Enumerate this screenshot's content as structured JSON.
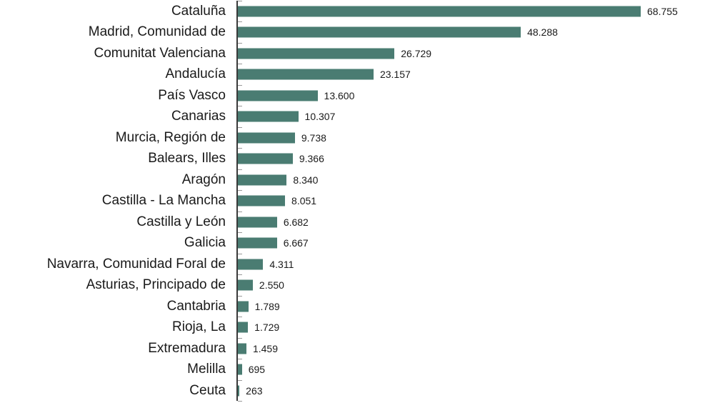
{
  "chart_data": {
    "type": "bar",
    "orientation": "horizontal",
    "title": "",
    "xlabel": "",
    "ylabel": "",
    "categories": [
      "Cataluña",
      "Madrid, Comunidad de",
      "Comunitat Valenciana",
      "Andalucía",
      "País Vasco",
      "Canarias",
      "Murcia, Región de",
      "Balears, Illes",
      "Aragón",
      "Castilla - La Mancha",
      "Castilla y León",
      "Galicia",
      "Navarra, Comunidad Foral de",
      "Asturias, Principado de",
      "Cantabria",
      "Rioja, La",
      "Extremadura",
      "Melilla",
      "Ceuta"
    ],
    "values": [
      68755,
      48288,
      26729,
      23157,
      13600,
      10307,
      9738,
      9366,
      8340,
      8051,
      6682,
      6667,
      4311,
      2550,
      1789,
      1729,
      1459,
      695,
      263
    ],
    "value_labels": [
      "68.755",
      "48.288",
      "26.729",
      "23.157",
      "13.600",
      "10.307",
      "9.738",
      "9.366",
      "8.340",
      "8.051",
      "6.682",
      "6.667",
      "4.311",
      "2.550",
      "1.789",
      "1.729",
      "1.459",
      "695",
      "263"
    ],
    "xlim": [
      0,
      68755
    ],
    "grid": false,
    "legend": null,
    "bar_color": "#4a7c72"
  }
}
